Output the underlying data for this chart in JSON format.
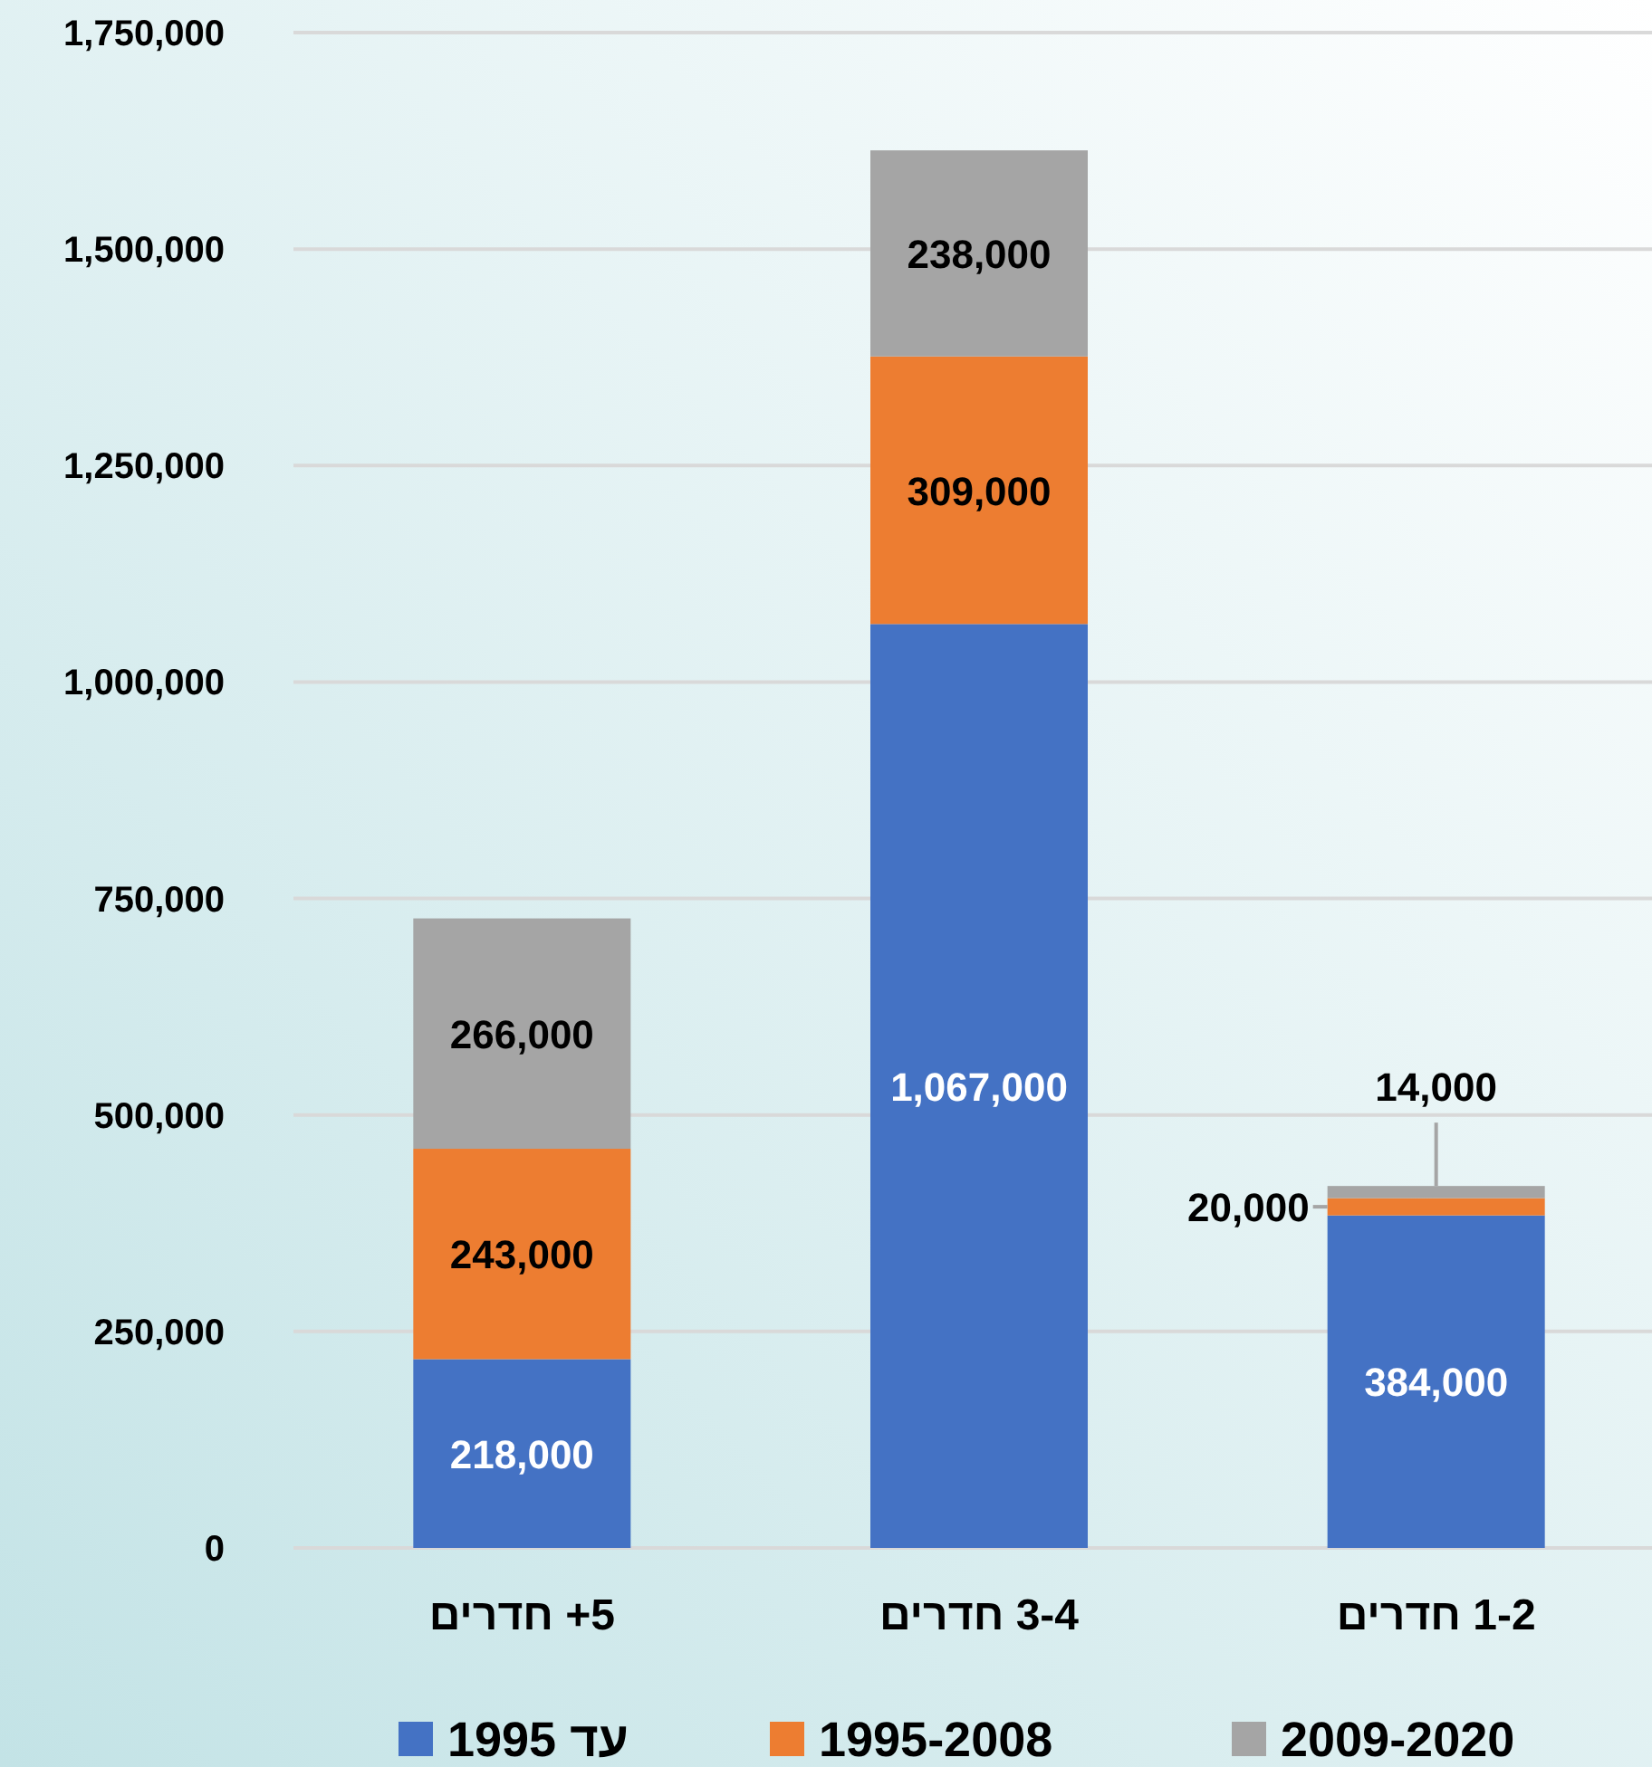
{
  "chart_data": {
    "type": "bar",
    "stacked": true,
    "categories": [
      "5+ חדרים",
      "3-4 חדרים",
      "1-2 חדרים"
    ],
    "series": [
      {
        "name": "עד 1995",
        "color": "#4472c4",
        "values": [
          218000,
          1067000,
          384000
        ],
        "value_labels": [
          "218,000",
          "1,067,000",
          "384,000"
        ]
      },
      {
        "name": "1995-2008",
        "color": "#ed7d31",
        "values": [
          243000,
          309000,
          20000
        ],
        "value_labels": [
          "243,000",
          "309,000",
          "20,000"
        ]
      },
      {
        "name": "2009-2020",
        "color": "#a5a5a5",
        "values": [
          266000,
          238000,
          14000
        ],
        "value_labels": [
          "266,000",
          "238,000",
          "14,000"
        ]
      }
    ],
    "ylim": [
      0,
      1750000
    ],
    "yticks": [
      {
        "value": 0,
        "label": "0"
      },
      {
        "value": 250000,
        "label": "250,000"
      },
      {
        "value": 500000,
        "label": "500,000"
      },
      {
        "value": 750000,
        "label": "750,000"
      },
      {
        "value": 1000000,
        "label": "1,000,000"
      },
      {
        "value": 1250000,
        "label": "1,250,000"
      },
      {
        "value": 1500000,
        "label": "1,500,000"
      },
      {
        "value": 1750000,
        "label": "1,750,000"
      }
    ],
    "grid": "y",
    "legend": "bottom"
  }
}
